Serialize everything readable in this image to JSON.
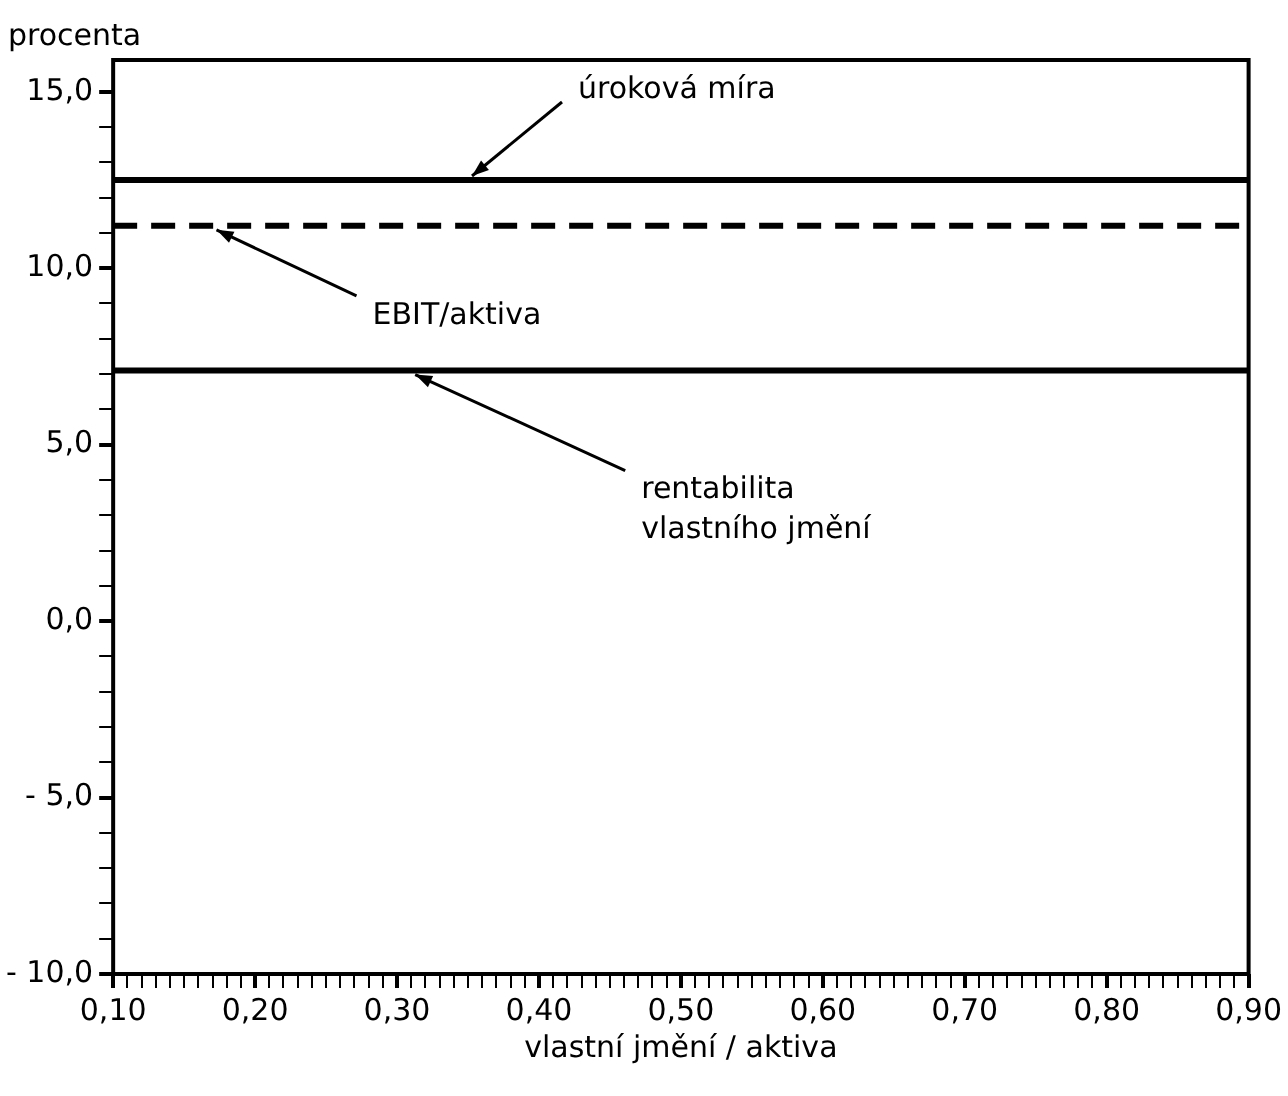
{
  "chart_data": {
    "type": "line",
    "xlabel": "vlastní jmění / aktiva",
    "ylabel": "procenta",
    "xlim": [
      0.1,
      0.9
    ],
    "ylim": [
      -10,
      15.9
    ],
    "xticks": [
      {
        "value": 0.1,
        "label": "0,10"
      },
      {
        "value": 0.11,
        "label": null
      },
      {
        "value": 0.12,
        "label": null
      },
      {
        "value": 0.13,
        "label": null
      },
      {
        "value": 0.14,
        "label": null
      },
      {
        "value": 0.15,
        "label": null
      },
      {
        "value": 0.16,
        "label": null
      },
      {
        "value": 0.17,
        "label": null
      },
      {
        "value": 0.18,
        "label": null
      },
      {
        "value": 0.19,
        "label": null
      },
      {
        "value": 0.2,
        "label": "0,20"
      },
      {
        "value": 0.21,
        "label": null
      },
      {
        "value": 0.22,
        "label": null
      },
      {
        "value": 0.23,
        "label": null
      },
      {
        "value": 0.24,
        "label": null
      },
      {
        "value": 0.25,
        "label": null
      },
      {
        "value": 0.26,
        "label": null
      },
      {
        "value": 0.27,
        "label": null
      },
      {
        "value": 0.28,
        "label": null
      },
      {
        "value": 0.29,
        "label": null
      },
      {
        "value": 0.3,
        "label": "0,30"
      },
      {
        "value": 0.31,
        "label": null
      },
      {
        "value": 0.32,
        "label": null
      },
      {
        "value": 0.33,
        "label": null
      },
      {
        "value": 0.34,
        "label": null
      },
      {
        "value": 0.35,
        "label": null
      },
      {
        "value": 0.36,
        "label": null
      },
      {
        "value": 0.37,
        "label": null
      },
      {
        "value": 0.38,
        "label": null
      },
      {
        "value": 0.39,
        "label": null
      },
      {
        "value": 0.4,
        "label": "0,40"
      },
      {
        "value": 0.41,
        "label": null
      },
      {
        "value": 0.42,
        "label": null
      },
      {
        "value": 0.43,
        "label": null
      },
      {
        "value": 0.44,
        "label": null
      },
      {
        "value": 0.45,
        "label": null
      },
      {
        "value": 0.46,
        "label": null
      },
      {
        "value": 0.47,
        "label": null
      },
      {
        "value": 0.48,
        "label": null
      },
      {
        "value": 0.49,
        "label": null
      },
      {
        "value": 0.5,
        "label": "0,50"
      },
      {
        "value": 0.51,
        "label": null
      },
      {
        "value": 0.52,
        "label": null
      },
      {
        "value": 0.53,
        "label": null
      },
      {
        "value": 0.54,
        "label": null
      },
      {
        "value": 0.55,
        "label": null
      },
      {
        "value": 0.56,
        "label": null
      },
      {
        "value": 0.57,
        "label": null
      },
      {
        "value": 0.58,
        "label": null
      },
      {
        "value": 0.59,
        "label": null
      },
      {
        "value": 0.6,
        "label": "0,60"
      },
      {
        "value": 0.61,
        "label": null
      },
      {
        "value": 0.62,
        "label": null
      },
      {
        "value": 0.63,
        "label": null
      },
      {
        "value": 0.64,
        "label": null
      },
      {
        "value": 0.65,
        "label": null
      },
      {
        "value": 0.66,
        "label": null
      },
      {
        "value": 0.67,
        "label": null
      },
      {
        "value": 0.68,
        "label": null
      },
      {
        "value": 0.69,
        "label": null
      },
      {
        "value": 0.7,
        "label": "0,70"
      },
      {
        "value": 0.71,
        "label": null
      },
      {
        "value": 0.72,
        "label": null
      },
      {
        "value": 0.73,
        "label": null
      },
      {
        "value": 0.74,
        "label": null
      },
      {
        "value": 0.75,
        "label": null
      },
      {
        "value": 0.76,
        "label": null
      },
      {
        "value": 0.77,
        "label": null
      },
      {
        "value": 0.78,
        "label": null
      },
      {
        "value": 0.79,
        "label": null
      },
      {
        "value": 0.8,
        "label": "0,80"
      },
      {
        "value": 0.81,
        "label": null
      },
      {
        "value": 0.82,
        "label": null
      },
      {
        "value": 0.83,
        "label": null
      },
      {
        "value": 0.84,
        "label": null
      },
      {
        "value": 0.85,
        "label": null
      },
      {
        "value": 0.86,
        "label": null
      },
      {
        "value": 0.87,
        "label": null
      },
      {
        "value": 0.88,
        "label": null
      },
      {
        "value": 0.89,
        "label": null
      },
      {
        "value": 0.9,
        "label": "0,90"
      }
    ],
    "yticks": [
      {
        "value": -10,
        "label": "- 10,0"
      },
      {
        "value": -9,
        "label": null
      },
      {
        "value": -8,
        "label": null
      },
      {
        "value": -7,
        "label": null
      },
      {
        "value": -6,
        "label": null
      },
      {
        "value": -5,
        "label": "- 5,0"
      },
      {
        "value": -4,
        "label": null
      },
      {
        "value": -3,
        "label": null
      },
      {
        "value": -2,
        "label": null
      },
      {
        "value": -1,
        "label": null
      },
      {
        "value": 0,
        "label": "0,0"
      },
      {
        "value": 1,
        "label": null
      },
      {
        "value": 2,
        "label": null
      },
      {
        "value": 3,
        "label": null
      },
      {
        "value": 4,
        "label": null
      },
      {
        "value": 5,
        "label": "5,0"
      },
      {
        "value": 6,
        "label": null
      },
      {
        "value": 7,
        "label": null
      },
      {
        "value": 8,
        "label": null
      },
      {
        "value": 9,
        "label": null
      },
      {
        "value": 10,
        "label": "10,0"
      },
      {
        "value": 11,
        "label": null
      },
      {
        "value": 12,
        "label": null
      },
      {
        "value": 13,
        "label": null
      },
      {
        "value": 14,
        "label": null
      },
      {
        "value": 15,
        "label": "15,0"
      }
    ],
    "ref_lines": [
      {
        "axis": "y",
        "value": 12.5,
        "color": "#000000",
        "line_style": "solid"
      },
      {
        "axis": "y",
        "value": 11.2,
        "color": "#000000",
        "line_style": "dashed"
      },
      {
        "axis": "y",
        "value": 7.1,
        "color": "#000000",
        "line_style": "solid"
      }
    ],
    "annotations": [
      {
        "text": "úroková míra",
        "x": 0.35,
        "y": 12.5
      },
      {
        "text": "EBIT/aktiva",
        "x": 0.17,
        "y": 11.2
      },
      {
        "text": "rentabilita\nvlastního jmění",
        "x": 0.31,
        "y": 7.1
      }
    ],
    "grid": false,
    "legend": false
  }
}
